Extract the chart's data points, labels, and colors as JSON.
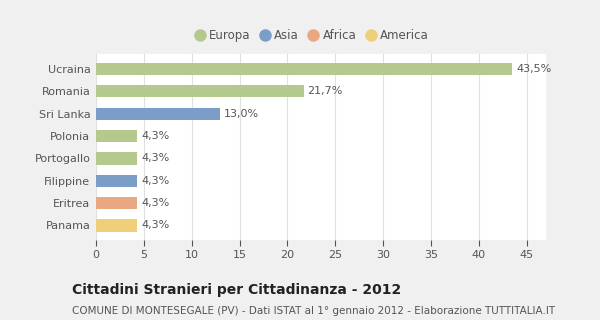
{
  "categories": [
    "Ucraina",
    "Romania",
    "Sri Lanka",
    "Polonia",
    "Portogallo",
    "Filippine",
    "Eritrea",
    "Panama"
  ],
  "values": [
    43.5,
    21.7,
    13.0,
    4.3,
    4.3,
    4.3,
    4.3,
    4.3
  ],
  "labels": [
    "43,5%",
    "21,7%",
    "13,0%",
    "4,3%",
    "4,3%",
    "4,3%",
    "4,3%",
    "4,3%"
  ],
  "colors": [
    "#b5c98e",
    "#b5c98e",
    "#7b9dc7",
    "#b5c98e",
    "#b5c98e",
    "#7b9dc7",
    "#e8a882",
    "#f0cf7a"
  ],
  "legend_labels": [
    "Europa",
    "Asia",
    "Africa",
    "America"
  ],
  "legend_colors": [
    "#b5c98e",
    "#7b9dc7",
    "#e8a882",
    "#f0cf7a"
  ],
  "xlim": [
    0,
    47
  ],
  "xticks": [
    0,
    5,
    10,
    15,
    20,
    25,
    30,
    35,
    40,
    45
  ],
  "title": "Cittadini Stranieri per Cittadinanza - 2012",
  "subtitle": "COMUNE DI MONTESEGALE (PV) - Dati ISTAT al 1° gennaio 2012 - Elaborazione TUTTITALIA.IT",
  "outer_bg_color": "#f0f0f0",
  "plot_bg_color": "#ffffff",
  "grid_color": "#e0e0e0",
  "bar_height": 0.55,
  "title_fontsize": 10,
  "subtitle_fontsize": 7.5,
  "label_fontsize": 8,
  "tick_fontsize": 8,
  "legend_fontsize": 8.5,
  "text_color": "#555555"
}
